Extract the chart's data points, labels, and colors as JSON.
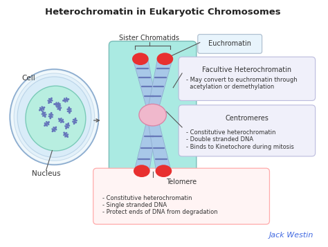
{
  "title": "Heterochromatin in Eukaryotic Chromosomes",
  "title_fontsize": 9.5,
  "background_color": "#ffffff",
  "cell_label": "Cell",
  "nucleus_label": "Nucleus",
  "sister_chromatids_label": "Sister Chromatids",
  "euchromatin_label": "Euchromatin",
  "facultive_box_title": "Facultive Heterochromatin",
  "facultive_box_text": "- May convert to euchromatin through\n  acetylation or demethylation",
  "centromeres_box_title": "Centromeres",
  "centromeres_box_text": "- Constitutive heterochromatin\n- Double stranded DNA\n- Binds to Kinetochore during mitosis",
  "telomere_box_title": "Telomere",
  "telomere_box_text": "- Constitutive heterochromatin\n- Single stranded DNA\n- Protect ends of DNA from degradation",
  "watermark": "Jack Westin",
  "watermark_color": "#4169E1",
  "cell_outer_color": "#d0e8f8",
  "cell_ring_color": "#b8d8f0",
  "nucleus_color": "#b8eee0",
  "nucleus_border_color": "#7acab8",
  "chromosome_bg_color": "#aaeae2",
  "chromatid_color": "#a8c8e8",
  "chromatid_border_color": "#90aed0",
  "chromatid_stripe_color": "#6678b8",
  "centromere_color": "#f0b8cc",
  "centromere_border_color": "#d888a8",
  "telomere_red_color": "#e83030",
  "arrow_color": "#555555",
  "euchromatin_box_color": "#e8f4fc",
  "euchromatin_box_border": "#aabbcc",
  "facultive_box_color": "#f0f0fa",
  "facultive_box_border": "#bbbbdd",
  "centromere_info_box_color": "#f0f0fa",
  "centromere_info_box_border": "#bbbbdd",
  "telomere_box_color": "#fff4f4",
  "telomere_box_border": "#ffaaaa",
  "mini_chrom_color": "#6677bb"
}
